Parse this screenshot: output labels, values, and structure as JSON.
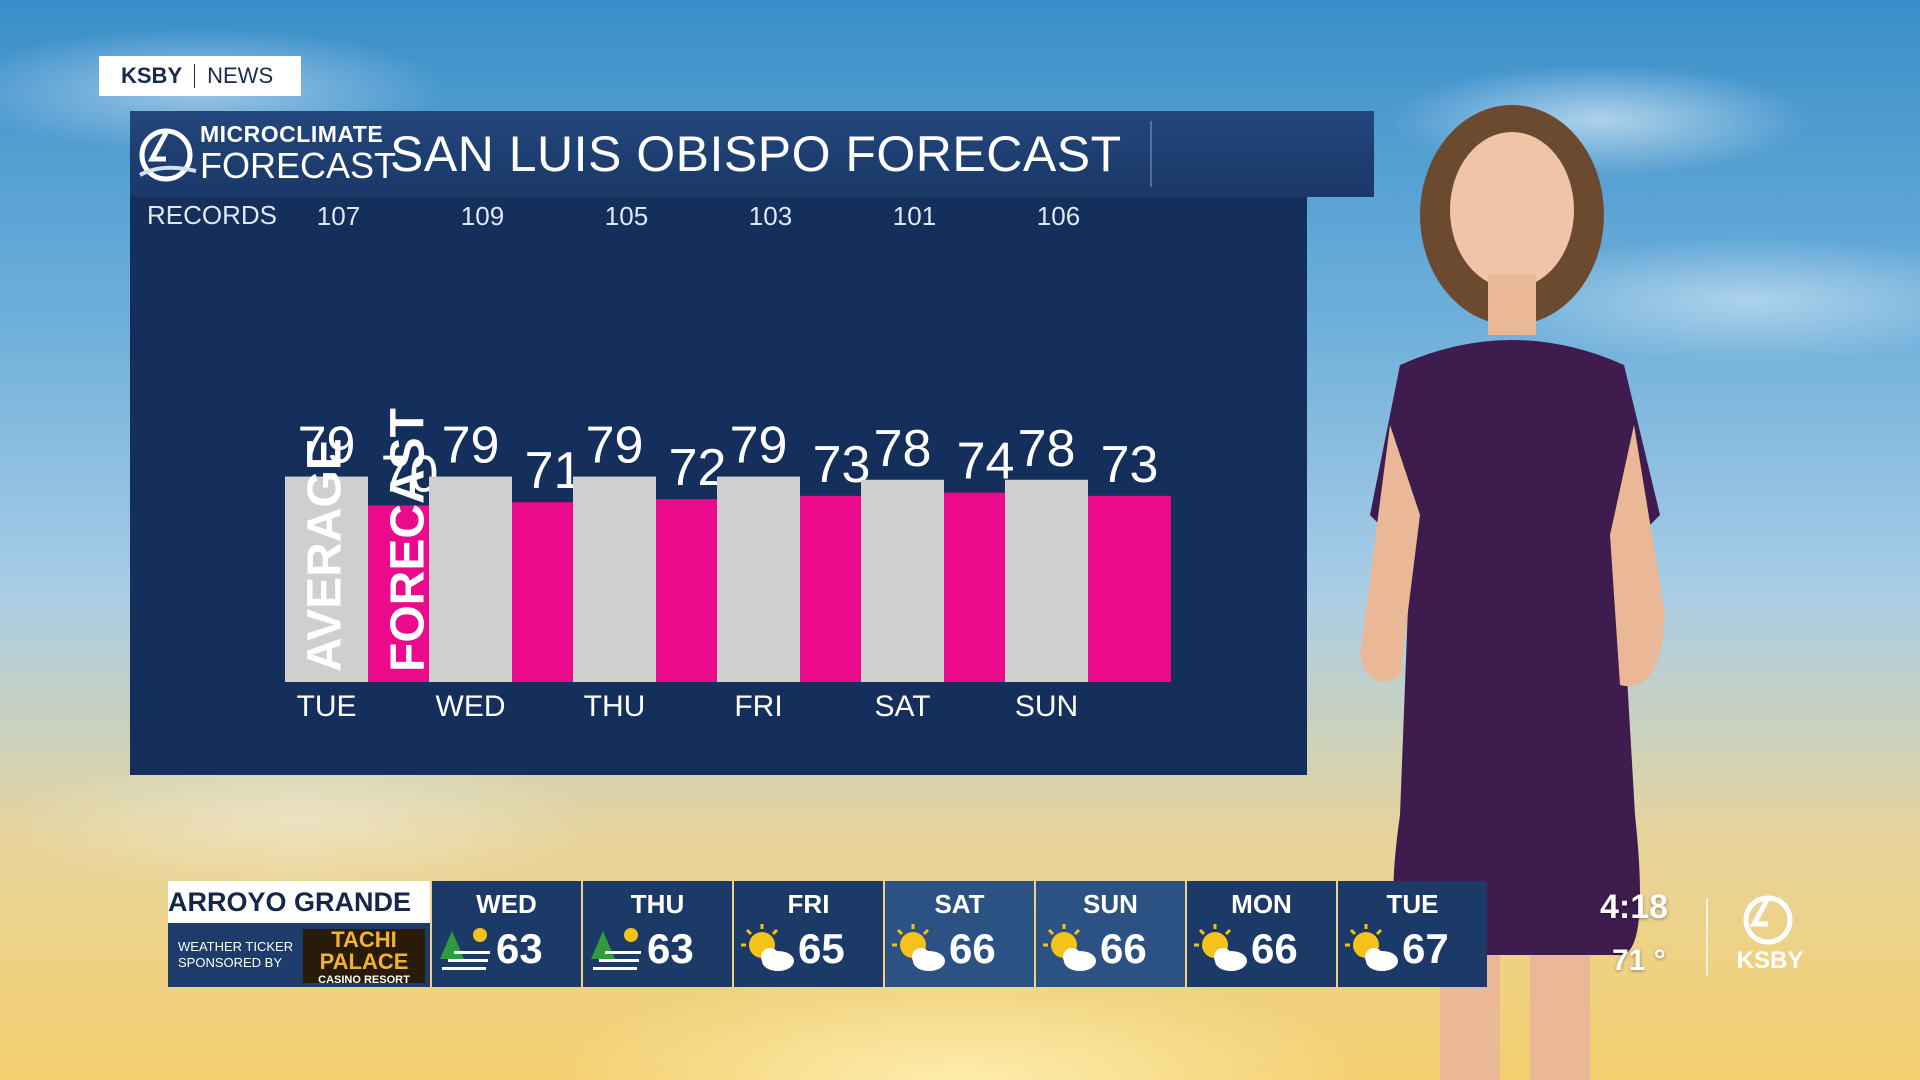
{
  "brand_tag": {
    "station": "KSBY",
    "section": "NEWS"
  },
  "header": {
    "logo_line1": "MICROCLIMATE",
    "logo_line2": "FORECAST",
    "title": "SAN LUIS OBISPO FORECAST"
  },
  "chart_data": {
    "type": "bar",
    "records_label": "RECORDS",
    "categories": [
      "TUE",
      "WED",
      "THU",
      "FRI",
      "SAT",
      "SUN"
    ],
    "records": [
      107,
      109,
      105,
      103,
      101,
      106
    ],
    "series": [
      {
        "name": "AVERAGE",
        "color": "#cfcfcf",
        "values": [
          79,
          79,
          79,
          79,
          78,
          78
        ]
      },
      {
        "name": "FORECAST",
        "color": "#ec0a8c",
        "values": [
          70,
          71,
          72,
          73,
          74,
          73
        ]
      }
    ]
  },
  "ticker": {
    "location": "ARROYO GRANDE",
    "sponsor_text": [
      "WEATHER TICKER",
      "SPONSORED BY"
    ],
    "sponsor_logo": "TACHI PALACE",
    "sponsor_sub": "CASINO RESORT",
    "days": [
      {
        "day": "WED",
        "temp": "63",
        "icon": "sun-fog-icon"
      },
      {
        "day": "THU",
        "temp": "63",
        "icon": "sun-fog-icon"
      },
      {
        "day": "FRI",
        "temp": "65",
        "icon": "partly-sunny-icon"
      },
      {
        "day": "SAT",
        "temp": "66",
        "icon": "partly-sunny-icon"
      },
      {
        "day": "SUN",
        "temp": "66",
        "icon": "partly-sunny-icon"
      },
      {
        "day": "MON",
        "temp": "66",
        "icon": "partly-sunny-icon"
      },
      {
        "day": "TUE",
        "temp": "67",
        "icon": "partly-sunny-icon"
      }
    ]
  },
  "status": {
    "time": "4:18",
    "current_temp": "71 °",
    "corner_logo": "KSBY"
  },
  "colors": {
    "panel": "#142f5c",
    "forecast_bar": "#ec0a8c",
    "average_bar": "#cfcfcf"
  }
}
